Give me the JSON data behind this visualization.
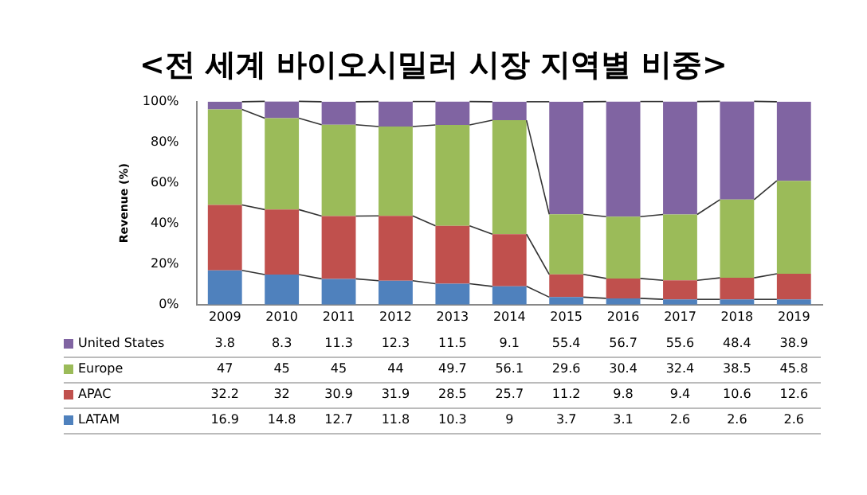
{
  "chart_data": {
    "type": "bar",
    "title": "<전 세계 바이오시밀러 시장 지역별 비중>",
    "ylabel": "Revenue (%)",
    "categories": [
      "2009",
      "2010",
      "2011",
      "2012",
      "2013",
      "2014",
      "2015",
      "2016",
      "2017",
      "2018",
      "2019"
    ],
    "stacked": true,
    "series": [
      {
        "name": "LATAM",
        "color": "#4f81bd",
        "values": [
          16.9,
          14.8,
          12.7,
          11.8,
          10.3,
          9,
          3.7,
          3.1,
          2.6,
          2.6,
          2.6
        ]
      },
      {
        "name": "APAC",
        "color": "#c0504d",
        "values": [
          32.2,
          32,
          30.9,
          31.9,
          28.5,
          25.7,
          11.2,
          9.8,
          9.4,
          10.6,
          12.6
        ]
      },
      {
        "name": "Europe",
        "color": "#9bbb59",
        "values": [
          47,
          45,
          45,
          44,
          49.7,
          56.1,
          29.6,
          30.4,
          32.4,
          38.5,
          45.8
        ]
      },
      {
        "name": "United States",
        "color": "#8064a2",
        "values": [
          3.8,
          8.3,
          11.3,
          12.3,
          11.5,
          9.1,
          55.4,
          56.7,
          55.6,
          48.4,
          38.9
        ]
      }
    ],
    "ylim": [
      0,
      100
    ],
    "yticks": [
      {
        "value": 0,
        "label": "0%"
      },
      {
        "value": 20,
        "label": "20%"
      },
      {
        "value": 40,
        "label": "40%"
      },
      {
        "value": 60,
        "label": "60%"
      },
      {
        "value": 80,
        "label": "80%"
      },
      {
        "value": 100,
        "label": "100%"
      }
    ],
    "grid": false,
    "legend": "bottom",
    "data_labels": true
  }
}
